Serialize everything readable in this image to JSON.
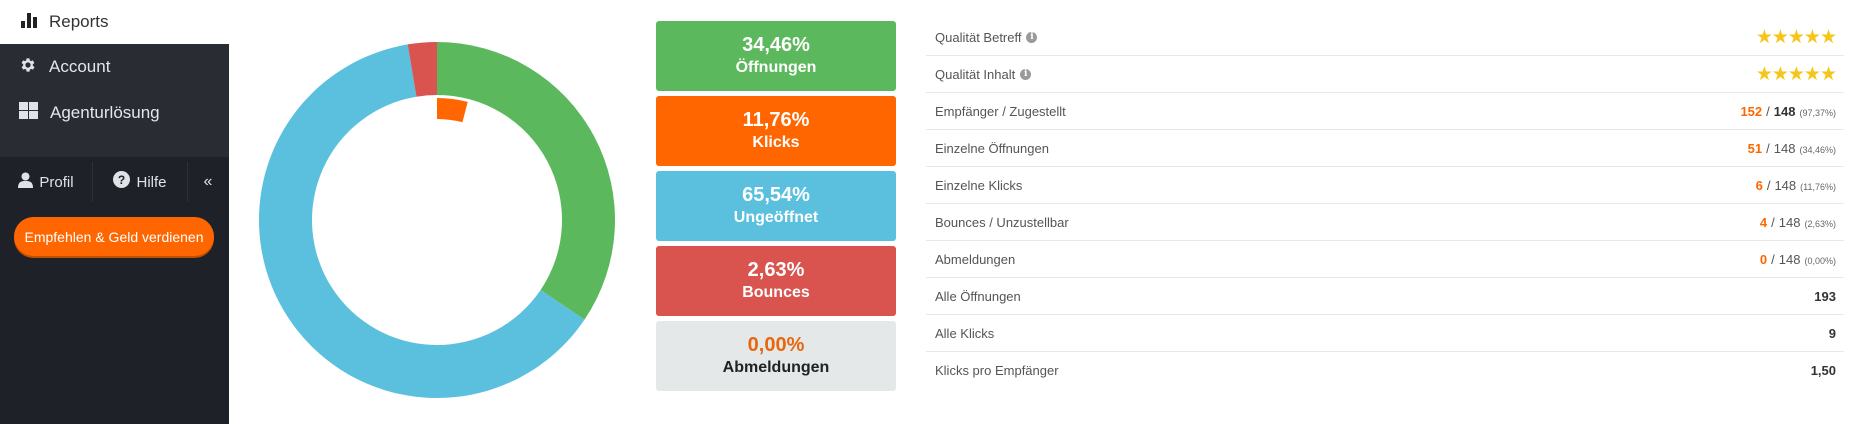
{
  "sidebar": {
    "reports_label": "Reports",
    "nav": [
      {
        "label": "Account",
        "icon": "gear-icon"
      },
      {
        "label": "Agenturlösung",
        "icon": "grid-icon"
      }
    ],
    "profile_label": "Profil",
    "help_label": "Hilfe",
    "collapse_glyph": "«",
    "refer_button": "Empfehlen & Geld verdienen"
  },
  "colors": {
    "opens": "#5cb85c",
    "clicks": "#ff6600",
    "unopened": "#5bc0de",
    "bounces": "#d9534f",
    "unsubscribes_bg": "#e4e8e9",
    "accent": "#ff6600",
    "star": "#f5c518"
  },
  "stats": [
    {
      "pct": "34,46%",
      "label": "Öffnungen",
      "bg": "#5cb85c",
      "pct_color": "#ffffff",
      "label_color": "#ffffff"
    },
    {
      "pct": "11,76%",
      "label": "Klicks",
      "bg": "#ff6600",
      "pct_color": "#ffffff",
      "label_color": "#ffffff"
    },
    {
      "pct": "65,54%",
      "label": "Ungeöffnet",
      "bg": "#5bc0de",
      "pct_color": "#ffffff",
      "label_color": "#ffffff"
    },
    {
      "pct": "2,63%",
      "label": "Bounces",
      "bg": "#d9534f",
      "pct_color": "#ffffff",
      "label_color": "#ffffff"
    },
    {
      "pct": "0,00%",
      "label": "Abmeldungen",
      "bg": "#e4e8e9",
      "pct_color": "#e8670c",
      "label_color": "#222222"
    }
  ],
  "chart_data": {
    "type": "pie",
    "title": "",
    "outer_ring": [
      {
        "name": "Öffnungen",
        "value": 34.46,
        "color": "#5cb85c"
      },
      {
        "name": "Ungeöffnet",
        "value": 62.91,
        "color": "#5bc0de"
      },
      {
        "name": "Bounces",
        "value": 2.63,
        "color": "#d9534f"
      }
    ],
    "inner_ring": [
      {
        "name": "Klicks",
        "value": 4.05,
        "color": "#ff6600"
      }
    ]
  },
  "table": {
    "rows": [
      {
        "label": "Qualität Betreff",
        "info": true,
        "type": "stars",
        "stars": "★★★★★"
      },
      {
        "label": "Qualität Inhalt",
        "info": true,
        "type": "stars",
        "stars": "★★★★★"
      },
      {
        "label": "Empfänger / Zugestellt",
        "type": "ratio",
        "value": "152",
        "total": "148",
        "pct": "(97,37%)",
        "total_bold": true
      },
      {
        "label": "Einzelne Öffnungen",
        "type": "ratio",
        "value": "51",
        "total": "148",
        "pct": "(34,46%)"
      },
      {
        "label": "Einzelne Klicks",
        "type": "ratio",
        "value": "6",
        "total": "148",
        "pct": "(11,76%)"
      },
      {
        "label": "Bounces / Unzustellbar",
        "type": "ratio",
        "value": "4",
        "total": "148",
        "pct": "(2,63%)"
      },
      {
        "label": "Abmeldungen",
        "type": "ratio",
        "value": "0",
        "total": "148",
        "pct": "(0,00%)"
      },
      {
        "label": "Alle Öffnungen",
        "type": "plain",
        "value": "193"
      },
      {
        "label": "Alle Klicks",
        "type": "plain",
        "value": "9"
      },
      {
        "label": "Klicks pro Empfänger",
        "type": "plain",
        "value": "1,50"
      }
    ],
    "separator": "/",
    "info_glyph": "i"
  }
}
